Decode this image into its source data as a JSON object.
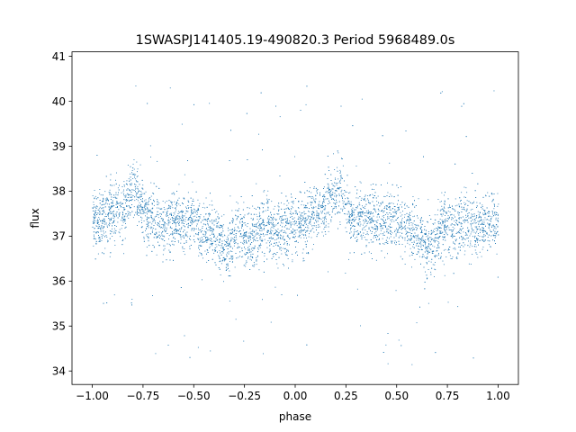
{
  "chart_data": {
    "type": "scatter",
    "title": "1SWASPJ141405.19-490820.3 Period 5968489.0s",
    "xlabel": "phase",
    "ylabel": "flux",
    "xlim": [
      -1.1,
      1.1
    ],
    "ylim": [
      33.7,
      41.1
    ],
    "xticks": [
      -1.0,
      -0.75,
      -0.5,
      -0.25,
      0.0,
      0.25,
      0.5,
      0.75,
      1.0
    ],
    "xtick_labels": [
      "−1.00",
      "−0.75",
      "−0.50",
      "−0.25",
      "0.00",
      "0.25",
      "0.50",
      "0.75",
      "1.00"
    ],
    "yticks": [
      34,
      35,
      36,
      37,
      38,
      39,
      40,
      41
    ],
    "ytick_labels": [
      "34",
      "35",
      "36",
      "37",
      "38",
      "39",
      "40",
      "41"
    ],
    "grid": false,
    "series": [
      {
        "color": "#1f77b4",
        "profile_x": [
          -1.0,
          -0.97,
          -0.94,
          -0.91,
          -0.88,
          -0.85,
          -0.82,
          -0.79,
          -0.76,
          -0.73,
          -0.7,
          -0.67,
          -0.64,
          -0.61,
          -0.58,
          -0.55,
          -0.52,
          -0.49,
          -0.46,
          -0.43,
          -0.4,
          -0.37,
          -0.34,
          -0.31,
          -0.28,
          -0.25,
          -0.22,
          -0.19,
          -0.16,
          -0.13,
          -0.1,
          -0.07,
          -0.04,
          -0.01,
          0.02,
          0.05,
          0.08,
          0.11,
          0.14,
          0.17,
          0.2,
          0.23,
          0.26,
          0.29,
          0.32,
          0.35,
          0.38,
          0.41,
          0.44,
          0.47,
          0.5,
          0.53,
          0.56,
          0.59,
          0.62,
          0.65,
          0.68,
          0.71,
          0.74,
          0.77,
          0.8,
          0.83,
          0.86,
          0.89,
          0.92,
          0.95,
          0.98,
          1.0
        ],
        "profile_y": [
          37.4,
          37.3,
          37.4,
          37.5,
          37.6,
          37.5,
          37.9,
          38.0,
          37.8,
          37.4,
          37.4,
          37.3,
          37.3,
          37.4,
          37.3,
          37.3,
          37.4,
          37.2,
          37.1,
          37.1,
          37.0,
          36.9,
          36.7,
          36.9,
          37.1,
          37.0,
          36.9,
          37.1,
          37.2,
          37.2,
          37.1,
          37.1,
          37.2,
          37.3,
          37.3,
          37.3,
          37.4,
          37.5,
          37.6,
          37.9,
          38.0,
          37.9,
          37.6,
          37.4,
          37.4,
          37.4,
          37.4,
          37.3,
          37.3,
          37.4,
          37.4,
          37.3,
          37.2,
          37.0,
          37.0,
          36.7,
          36.9,
          37.1,
          37.3,
          37.2,
          37.2,
          37.3,
          37.2,
          37.3,
          37.2,
          37.3,
          37.3,
          37.3
        ]
      }
    ]
  }
}
